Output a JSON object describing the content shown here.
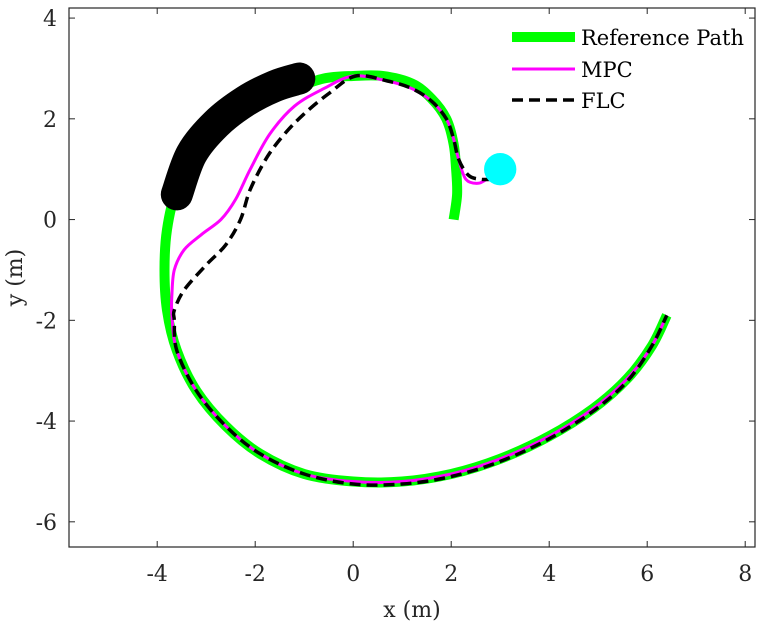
{
  "chart_data": {
    "type": "line",
    "xlabel": "x (m)",
    "ylabel": "y (m)",
    "xlim": [
      -5.8,
      8.2
    ],
    "ylim": [
      -6.5,
      4.2
    ],
    "xticks": [
      -4,
      -2,
      0,
      2,
      4,
      6,
      8
    ],
    "yticks": [
      -6,
      -4,
      -2,
      0,
      2,
      4
    ],
    "xtick_labels": [
      "-4",
      "-2",
      "0",
      "2",
      "4",
      "6",
      "8"
    ],
    "ytick_labels": [
      "-6",
      "-4",
      "-2",
      "0",
      "2",
      "4"
    ],
    "grid": false,
    "legend_position": "top-right",
    "series": [
      {
        "name": "Reference Path",
        "color": "#00ff00",
        "style": "solid",
        "x": [
          2.05,
          2.12,
          2.1,
          2.05,
          1.9,
          1.6,
          1.2,
          0.6,
          0.0,
          -0.6,
          -1.2,
          -1.9,
          -2.6,
          -3.2,
          -3.6,
          -3.8,
          -3.85,
          -3.8,
          -3.6,
          -3.2,
          -2.6,
          -1.9,
          -1.0,
          0.0,
          1.0,
          2.0,
          3.0,
          4.0,
          4.9,
          5.6,
          6.1,
          6.4
        ],
        "y": [
          0.0,
          0.5,
          1.0,
          1.5,
          2.0,
          2.4,
          2.7,
          2.85,
          2.85,
          2.8,
          2.6,
          2.3,
          1.85,
          1.3,
          0.6,
          -0.2,
          -1.0,
          -1.8,
          -2.6,
          -3.4,
          -4.1,
          -4.65,
          -5.05,
          -5.2,
          -5.2,
          -5.05,
          -4.75,
          -4.3,
          -3.75,
          -3.15,
          -2.5,
          -1.9
        ]
      },
      {
        "name": "MPC",
        "color": "#ff00ff",
        "style": "solid",
        "x": [
          2.75,
          2.55,
          2.3,
          2.15,
          2.05,
          1.9,
          1.6,
          1.2,
          0.7,
          0.0,
          -0.6,
          -1.2,
          -1.7,
          -2.1,
          -2.4,
          -2.7,
          -3.1,
          -3.45,
          -3.65,
          -3.7,
          -3.7,
          -3.6,
          -3.2,
          -2.6,
          -1.9,
          -1.0,
          0.0,
          1.0,
          2.0,
          3.0,
          4.0,
          4.9,
          5.6,
          6.1,
          6.4
        ],
        "y": [
          0.82,
          0.72,
          0.8,
          1.2,
          1.6,
          2.0,
          2.35,
          2.6,
          2.75,
          2.85,
          2.6,
          2.25,
          1.7,
          1.0,
          0.4,
          0.0,
          -0.3,
          -0.6,
          -1.0,
          -1.5,
          -1.9,
          -2.6,
          -3.4,
          -4.1,
          -4.65,
          -5.05,
          -5.2,
          -5.2,
          -5.05,
          -4.75,
          -4.3,
          -3.75,
          -3.15,
          -2.5,
          -1.9
        ]
      },
      {
        "name": "FLC",
        "color": "#000000",
        "style": "dashed",
        "x": [
          2.85,
          2.6,
          2.35,
          2.15,
          2.05,
          1.9,
          1.6,
          1.2,
          0.7,
          0.05,
          -0.5,
          -1.0,
          -1.4,
          -1.75,
          -2.1,
          -2.3,
          -2.6,
          -3.0,
          -3.45,
          -3.65,
          -3.65,
          -3.6,
          -3.2,
          -2.6,
          -1.9,
          -1.0,
          0.0,
          1.0,
          2.0,
          3.0,
          4.0,
          4.9,
          5.6,
          6.1,
          6.4
        ],
        "y": [
          0.8,
          0.8,
          0.88,
          1.2,
          1.6,
          2.0,
          2.35,
          2.6,
          2.75,
          2.85,
          2.5,
          2.1,
          1.7,
          1.25,
          0.6,
          0.0,
          -0.5,
          -0.9,
          -1.4,
          -1.8,
          -2.0,
          -2.6,
          -3.4,
          -4.1,
          -4.65,
          -5.05,
          -5.25,
          -5.25,
          -5.1,
          -4.8,
          -4.35,
          -3.8,
          -3.2,
          -2.5,
          -1.9
        ]
      }
    ],
    "obstacles": [
      {
        "name": "moving-obstacle-sweep",
        "color": "#000000",
        "x": [
          -3.6,
          -3.3,
          -2.8,
          -2.2,
          -1.6,
          -1.1
        ],
        "y": [
          0.5,
          1.3,
          1.9,
          2.35,
          2.65,
          2.8
        ]
      },
      {
        "name": "static-obstacle",
        "color": "#00ffff",
        "center": [
          3.0,
          1.0
        ],
        "radius": 0.33
      }
    ]
  }
}
